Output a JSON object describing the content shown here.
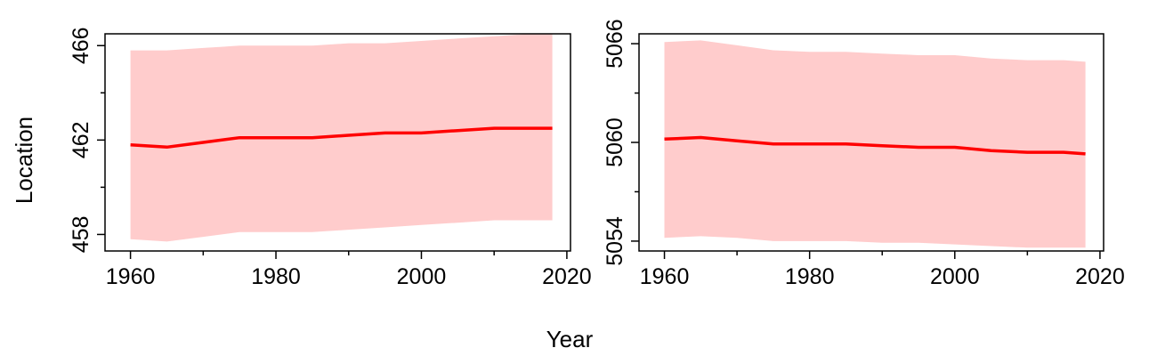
{
  "figure": {
    "xlabel": "Year",
    "ylabel": "Location"
  },
  "colors": {
    "line": "#ff0000",
    "band": "#ffcccc",
    "axis": "#000000",
    "background": "#ffffff"
  },
  "chart_data": [
    {
      "type": "line",
      "xlim": [
        1956.5,
        2020.5
      ],
      "ylim": [
        457.3,
        466.5
      ],
      "xticks": [
        1960,
        1980,
        2000,
        2020
      ],
      "xtick_labels": [
        "1960",
        "1980",
        "2000",
        "2020"
      ],
      "xminor": [
        1970,
        1990,
        2010
      ],
      "yticks": [
        458,
        462,
        466
      ],
      "ytick_labels": [
        "458",
        "462",
        "466"
      ],
      "yminor": [
        460,
        464
      ],
      "grid": false,
      "series": [
        {
          "x": [
            1960,
            1965,
            1970,
            1975,
            1980,
            1985,
            1990,
            1995,
            2000,
            2005,
            2010,
            2015,
            2018
          ],
          "y": [
            461.8,
            461.7,
            461.9,
            462.1,
            462.1,
            462.1,
            462.2,
            462.3,
            462.3,
            462.4,
            462.5,
            462.5,
            462.5
          ],
          "lower": [
            457.8,
            457.7,
            457.9,
            458.1,
            458.1,
            458.1,
            458.2,
            458.3,
            458.4,
            458.5,
            458.6,
            458.6,
            458.6
          ],
          "upper": [
            465.8,
            465.8,
            465.9,
            466.0,
            466.0,
            466.0,
            466.1,
            466.1,
            466.2,
            466.3,
            466.4,
            466.5,
            466.5
          ]
        }
      ]
    },
    {
      "type": "line",
      "xlim": [
        1956.5,
        2020.5
      ],
      "ylim": [
        5053.4,
        5066.6
      ],
      "xticks": [
        1960,
        1980,
        2000,
        2020
      ],
      "xtick_labels": [
        "1960",
        "1980",
        "2000",
        "2020"
      ],
      "xminor": [
        1970,
        1990,
        2010
      ],
      "yticks": [
        5054,
        5060,
        5066
      ],
      "ytick_labels": [
        "5054",
        "5060",
        "5066"
      ],
      "yminor": [
        5057,
        5063
      ],
      "grid": false,
      "series": [
        {
          "x": [
            1960,
            1965,
            1970,
            1975,
            1980,
            1985,
            1990,
            1995,
            2000,
            2005,
            2010,
            2015,
            2018
          ],
          "y": [
            5060.2,
            5060.3,
            5060.1,
            5059.9,
            5059.9,
            5059.9,
            5059.8,
            5059.7,
            5059.7,
            5059.5,
            5059.4,
            5059.4,
            5059.3
          ],
          "lower": [
            5054.2,
            5054.3,
            5054.2,
            5054.0,
            5054.0,
            5054.0,
            5053.9,
            5053.9,
            5053.8,
            5053.7,
            5053.6,
            5053.6,
            5053.6
          ],
          "upper": [
            5066.1,
            5066.2,
            5065.9,
            5065.6,
            5065.5,
            5065.5,
            5065.4,
            5065.3,
            5065.3,
            5065.1,
            5065.0,
            5065.0,
            5064.9
          ]
        }
      ]
    }
  ]
}
